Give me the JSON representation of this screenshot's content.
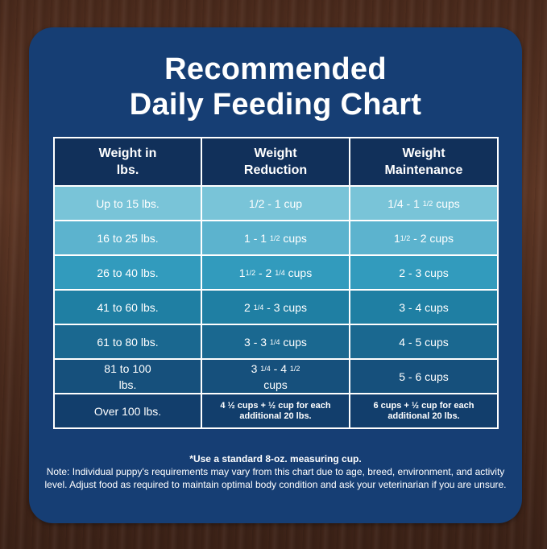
{
  "title": {
    "line1": "Recommended",
    "line2": "Daily Feeding Chart"
  },
  "table": {
    "headers": [
      {
        "line1": "Weight in",
        "line2": "lbs."
      },
      {
        "line1": "Weight",
        "line2": "Reduction"
      },
      {
        "line1": "Weight",
        "line2": "Maintenance"
      }
    ],
    "rows": [
      {
        "bg": "#79c4d8",
        "weight": "Up to 15 lbs.",
        "reduction": {
          "a": "1/2 - 1 cup"
        },
        "maintenance": {
          "a": "1/4 - 1 ",
          "sup": "1/2",
          "b": " cups"
        }
      },
      {
        "bg": "#5cb3ce",
        "weight": "16 to 25 lbs.",
        "reduction": {
          "a": "1 - 1 ",
          "sup": "1/2",
          "b": " cups"
        },
        "maintenance": {
          "a": "1",
          "sup": "1/2",
          "b": " - 2 cups"
        }
      },
      {
        "bg": "#329bbd",
        "weight": "26 to 40 lbs.",
        "reduction": {
          "a": "1",
          "sup": "1/2",
          "b": " - 2 ",
          "sup2": "1/4",
          "c": " cups"
        },
        "maintenance": {
          "a": "2 - 3 cups"
        }
      },
      {
        "bg": "#1f7fa3",
        "weight": "41 to 60 lbs.",
        "reduction": {
          "a": "2 ",
          "sup": "1/4",
          "b": " - 3 cups"
        },
        "maintenance": {
          "a": "3 - 4 cups"
        }
      },
      {
        "bg": "#1a6890",
        "weight": "61 to 80 lbs.",
        "reduction": {
          "a": "3 - 3 ",
          "sup": "1/4",
          "b": " cups"
        },
        "maintenance": {
          "a": "4 - 5 cups"
        }
      },
      {
        "bg": "#16507c",
        "weight_line1": "81 to 100",
        "weight_line2": "lbs.",
        "reduction": {
          "a": "3 ",
          "sup": "1/4",
          "b": " - 4 ",
          "sup2": "1/2",
          "line2": "cups"
        },
        "maintenance": {
          "a": "5 - 6 cups"
        }
      },
      {
        "bg": "#123e6c",
        "weight": "Over 100 lbs.",
        "reduction": {
          "line1": "4 ½ cups  + ½ cup for each",
          "line2": "additional 20 lbs."
        },
        "maintenance": {
          "line1": "6 cups  + ½ cup for each",
          "line2": "additional 20 lbs."
        }
      }
    ]
  },
  "notes": {
    "measuring": "*Use a standard 8-oz. measuring cup.",
    "disclaimer": "Note: Individual puppy's requirements may vary from this chart due to age, breed, environment, and activity level. Adjust food as required to maintain optimal body condition and ask your veterinarian if you are unsure."
  },
  "colors": {
    "board": "#163e74",
    "header": "#11305a",
    "text": "#ffffff"
  }
}
